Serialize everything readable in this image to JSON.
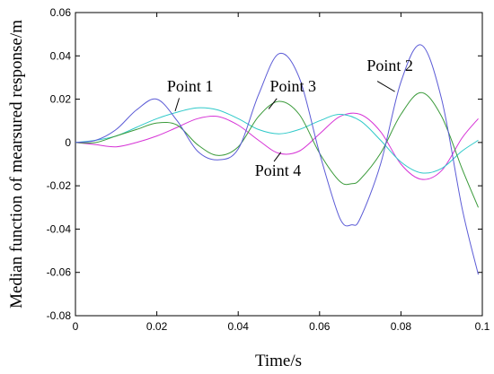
{
  "chart_data": {
    "type": "line",
    "title": "",
    "xlabel": "Time/s",
    "ylabel": "Median function of mearsured response/m",
    "xlim": [
      0,
      0.1
    ],
    "ylim": [
      -0.08,
      0.06
    ],
    "xticks": [
      0,
      0.02,
      0.04,
      0.06,
      0.08,
      0.1
    ],
    "xtick_labels": [
      "0",
      "0.02",
      "0.04",
      "0.06",
      "0.08",
      "0.1"
    ],
    "yticks": [
      -0.08,
      -0.06,
      -0.04,
      -0.02,
      0,
      0.02,
      0.04,
      0.06
    ],
    "ytick_labels": [
      "-0.08",
      "-0.06",
      "-0.04",
      "-0.02",
      "0",
      "0.02",
      "0.04",
      "0.06"
    ],
    "grid": false,
    "series": [
      {
        "name": "Point 1",
        "color": "#5b5bd6",
        "x": [
          0,
          0.005,
          0.01,
          0.015,
          0.02,
          0.025,
          0.03,
          0.035,
          0.04,
          0.045,
          0.05,
          0.055,
          0.06,
          0.065,
          0.068,
          0.07,
          0.075,
          0.08,
          0.085,
          0.09,
          0.095,
          0.099
        ],
        "y": [
          0,
          0.001,
          0.006,
          0.015,
          0.02,
          0.01,
          -0.004,
          -0.008,
          -0.003,
          0.022,
          0.041,
          0.03,
          -0.005,
          -0.035,
          -0.038,
          -0.035,
          -0.01,
          0.028,
          0.045,
          0.02,
          -0.03,
          -0.061
        ]
      },
      {
        "name": "Point 2",
        "color": "#3a9a3a",
        "x": [
          0,
          0.005,
          0.01,
          0.015,
          0.02,
          0.025,
          0.03,
          0.035,
          0.04,
          0.045,
          0.05,
          0.055,
          0.06,
          0.065,
          0.068,
          0.07,
          0.075,
          0.08,
          0.085,
          0.09,
          0.095,
          0.099
        ],
        "y": [
          0,
          0.0,
          0.003,
          0.006,
          0.009,
          0.008,
          -0.001,
          -0.006,
          -0.002,
          0.012,
          0.019,
          0.013,
          -0.005,
          -0.018,
          -0.019,
          -0.017,
          -0.005,
          0.013,
          0.023,
          0.012,
          -0.012,
          -0.03
        ]
      },
      {
        "name": "Point 3",
        "color": "#2ec9c9",
        "x": [
          0,
          0.005,
          0.01,
          0.015,
          0.02,
          0.025,
          0.03,
          0.035,
          0.04,
          0.045,
          0.05,
          0.055,
          0.06,
          0.065,
          0.07,
          0.075,
          0.08,
          0.085,
          0.09,
          0.095,
          0.099
        ],
        "y": [
          0,
          0.001,
          0.003,
          0.007,
          0.011,
          0.014,
          0.016,
          0.015,
          0.011,
          0.006,
          0.004,
          0.006,
          0.01,
          0.013,
          0.01,
          0.001,
          -0.009,
          -0.014,
          -0.012,
          -0.004,
          0.001
        ]
      },
      {
        "name": "Point 4",
        "color": "#d633d6",
        "x": [
          0,
          0.005,
          0.01,
          0.015,
          0.02,
          0.025,
          0.03,
          0.035,
          0.04,
          0.045,
          0.05,
          0.055,
          0.06,
          0.065,
          0.07,
          0.075,
          0.08,
          0.085,
          0.09,
          0.095,
          0.099
        ],
        "y": [
          0,
          -0.001,
          -0.002,
          0.0,
          0.003,
          0.007,
          0.011,
          0.012,
          0.008,
          0.001,
          -0.005,
          -0.004,
          0.004,
          0.012,
          0.013,
          0.005,
          -0.01,
          -0.017,
          -0.013,
          0.002,
          0.011
        ]
      }
    ],
    "annotations": [
      {
        "text": "Point 1"
      },
      {
        "text": "Point 2"
      },
      {
        "text": "Point 3"
      },
      {
        "text": "Point 4"
      }
    ]
  }
}
